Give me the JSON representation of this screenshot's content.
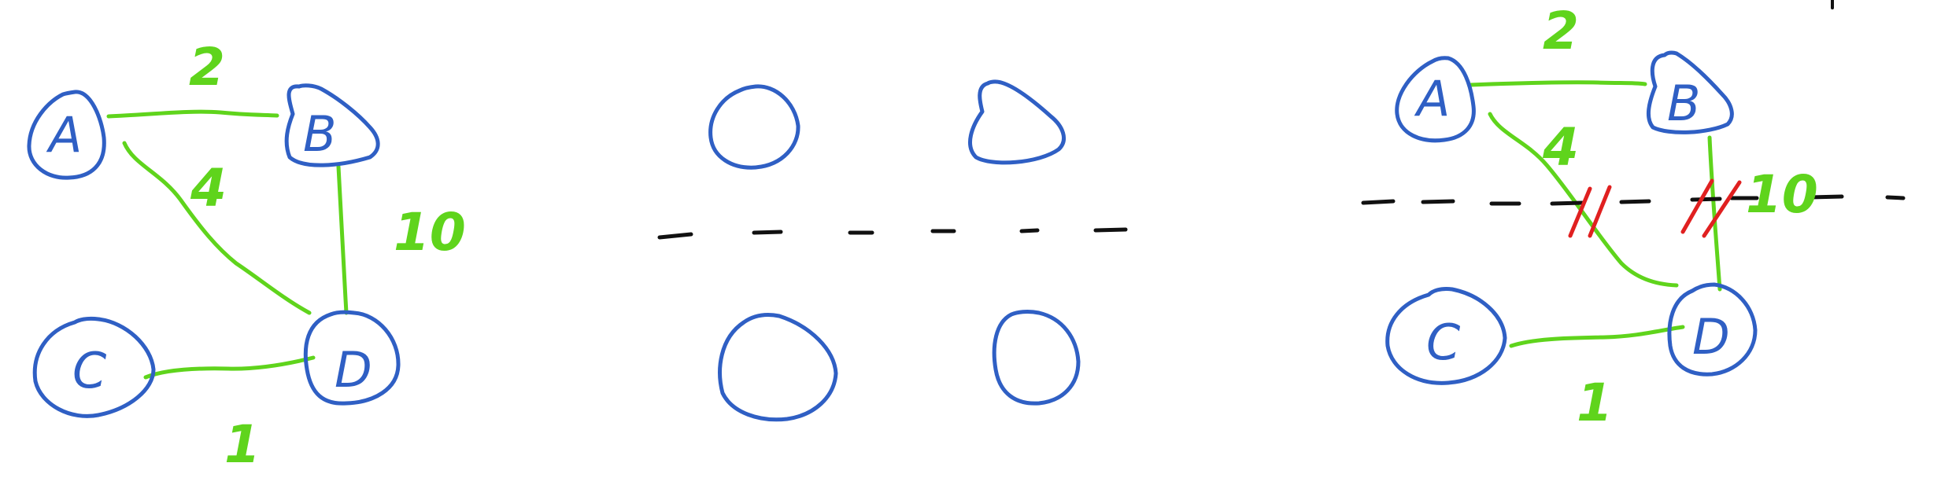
{
  "colors": {
    "node_stroke": "#2f5fc4",
    "edge_stroke": "#5fd41c",
    "cut_mark": "#e02020",
    "dashed_line": "#111111",
    "background": "#ffffff"
  },
  "panel1": {
    "nodes": {
      "a": "A",
      "b": "B",
      "c": "C",
      "d": "D"
    },
    "weights": {
      "ab": "2",
      "ad": "4",
      "bd": "10",
      "cd": "1"
    }
  },
  "panel2": {
    "node_count": 4,
    "nodes_labeled": false
  },
  "panel3": {
    "nodes": {
      "a": "A",
      "b": "B",
      "c": "C",
      "d": "D"
    },
    "weights": {
      "ab": "2",
      "ad": "4",
      "bd": "10",
      "cd": "1"
    },
    "cut_edges": [
      "A-D",
      "B-D"
    ]
  }
}
